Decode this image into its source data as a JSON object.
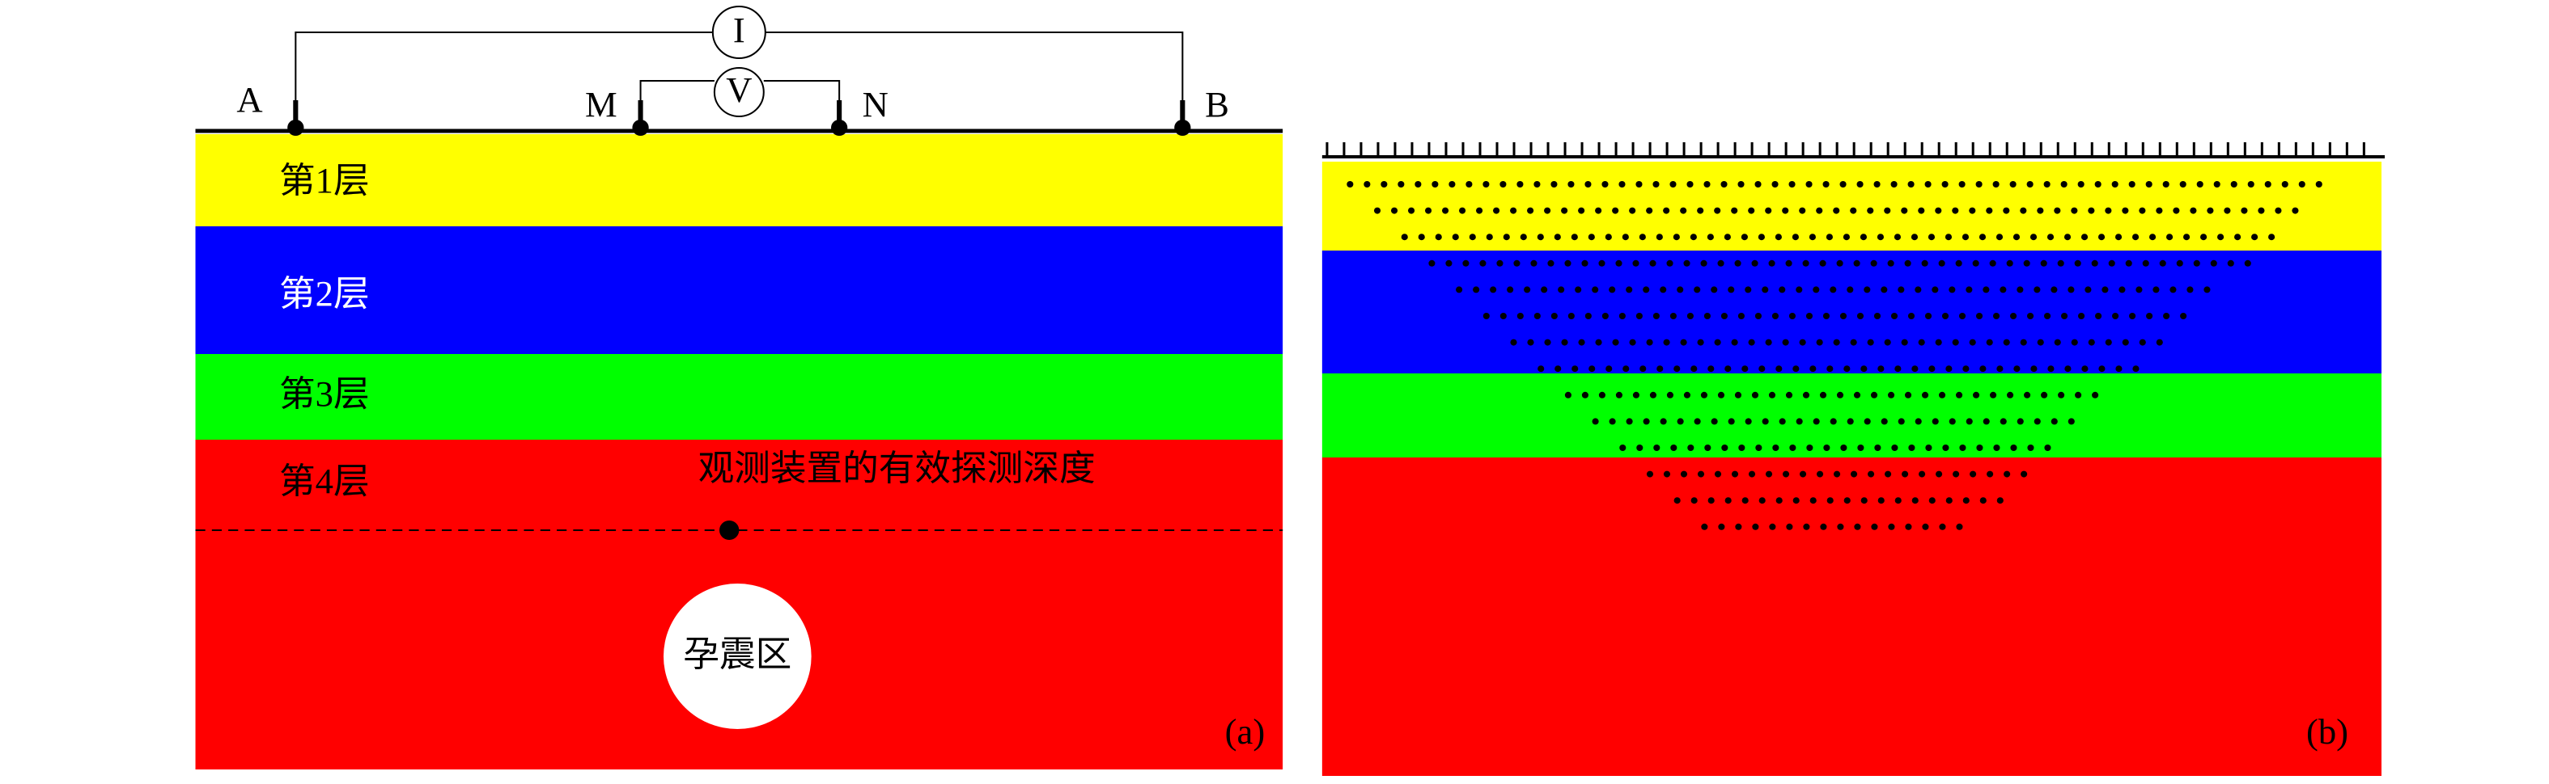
{
  "panel_a": {
    "electrodes": [
      "A",
      "M",
      "N",
      "B"
    ],
    "meters": [
      "I",
      "V"
    ],
    "layers": [
      "第1层",
      "第2层",
      "第3层",
      "第4层"
    ],
    "depth_label": "观测装置的有效探测深度",
    "zone_label": "孕震区",
    "panel_label": "(a)"
  },
  "panel_b": {
    "panel_label": "(b)"
  }
}
